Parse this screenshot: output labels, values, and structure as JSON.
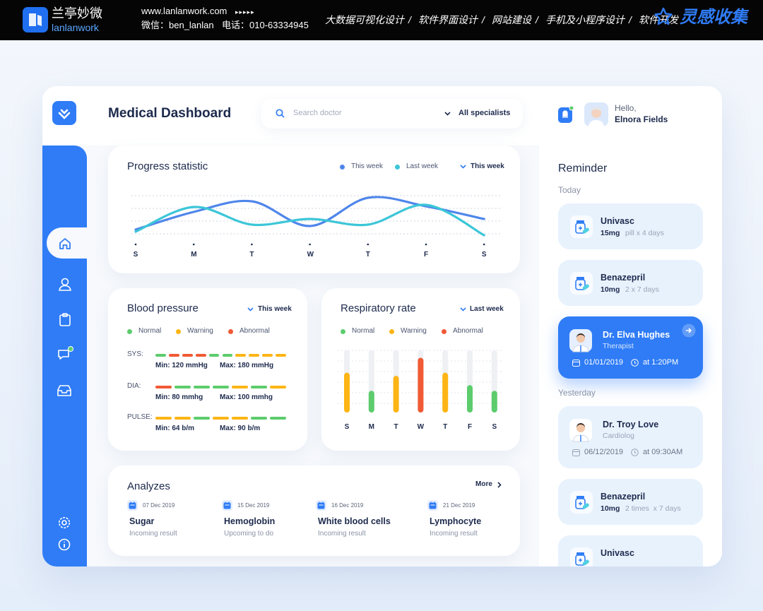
{
  "banner": {
    "brand_cn": "兰亭妙微",
    "brand_en": "lanlanwork",
    "url": "www.lanlanwork.com",
    "arrows": "▸▸▸▸▸",
    "wechat": "微信：ben_lanlan",
    "phone": "电话：010-63334945",
    "services": [
      "大数据可视化设计",
      "软件界面设计",
      "网站建设",
      "手机及小程序设计",
      "软件开发"
    ],
    "separator": "/",
    "collect": "灵感收集"
  },
  "header": {
    "title": "Medical Dashboard",
    "search_placeholder": "Search doctor",
    "filter": "All specialists",
    "greeting": "Hello,",
    "user": "Elnora Fields"
  },
  "progress": {
    "title": "Progress statistic",
    "period": "This week",
    "days": [
      "S",
      "M",
      "T",
      "W",
      "T",
      "F",
      "S"
    ],
    "series": [
      {
        "name": "This week",
        "color": "#4f86ea",
        "values": [
          15,
          40,
          55,
          20,
          60,
          48,
          30
        ]
      },
      {
        "name": "Last week",
        "color": "#3cc6d8",
        "values": [
          12,
          47,
          22,
          30,
          22,
          50,
          7
        ]
      }
    ]
  },
  "legend": [
    {
      "name": "Normal",
      "color": "#5ccc6c"
    },
    {
      "name": "Warning",
      "color": "#fdb515"
    },
    {
      "name": "Abnormal",
      "color": "#f05a35"
    }
  ],
  "blood_pressure": {
    "title": "Blood pressure",
    "period": "This week",
    "rows": [
      {
        "label": "SYS:",
        "min": "Min: 120 mmHg",
        "max": "Max: 180 mmHg",
        "segments": [
          "#5ccc6c",
          "#f05a35",
          "#f05a35",
          "#f05a35",
          "#5ccc6c",
          "#5ccc6c",
          "#fdb515",
          "#fdb515",
          "#fdb515",
          "#fdb515"
        ]
      },
      {
        "label": "DIA:",
        "min": "Min: 80 mmhg",
        "max": "Max: 100 mmhg",
        "segments": [
          "#f05a35",
          "#5ccc6c",
          "#5ccc6c",
          "#5ccc6c",
          "#fdb515",
          "#5ccc6c",
          "#fdb515"
        ]
      },
      {
        "label": "PULSE:",
        "min": "Min: 64 b/m",
        "max": "Max: 90 b/m",
        "segments": [
          "#fdb515",
          "#fdb515",
          "#5ccc6c",
          "#fdb515",
          "#fdb515",
          "#5ccc6c",
          "#5ccc6c"
        ]
      }
    ]
  },
  "respiratory": {
    "title": "Respiratory rate",
    "period": "Last week",
    "days": [
      "S",
      "M",
      "T",
      "W",
      "T",
      "F",
      "S"
    ],
    "values": [
      64,
      35,
      59,
      88,
      64,
      44,
      35
    ],
    "colors": [
      "#fdb515",
      "#5ccc6c",
      "#fdb515",
      "#f05a35",
      "#fdb515",
      "#5ccc6c",
      "#5ccc6c"
    ]
  },
  "analyzes": {
    "title": "Analyzes",
    "more": "More",
    "items": [
      {
        "date": "07 Dec 2019",
        "name": "Sugar",
        "status": "Incoming result"
      },
      {
        "date": "15 Dec 2019",
        "name": "Hemoglobin",
        "status": "Upcoming to do"
      },
      {
        "date": "16 Dec 2019",
        "name": "White blood cells",
        "status": "Incoming result"
      },
      {
        "date": "21 Dec 2019",
        "name": "Lymphocyte",
        "status": "Incoming result"
      }
    ]
  },
  "reminder": {
    "title": "Reminder",
    "groups": [
      {
        "label": "Today",
        "items": [
          {
            "name": "Univasc",
            "dose": "15mg",
            "detail": "pill x 4 days"
          },
          {
            "name": "Benazepril",
            "dose": "10mg",
            "detail": "2 x 7 days"
          },
          {
            "name": "Dr. Elva Hughes",
            "role": "Therapist",
            "date": "01/01/2019",
            "time": "at 1:20PM",
            "active": true
          }
        ]
      },
      {
        "label": "Yesterday",
        "items": [
          {
            "name": "Dr. Troy Love",
            "role": "Cardiolog",
            "date": "06/12/2019",
            "time": "at 09:30AM"
          },
          {
            "name": "Benazepril",
            "dose": "10mg",
            "detail": "2 times  x 7 days"
          },
          {
            "name": "Univasc"
          }
        ]
      }
    ]
  }
}
